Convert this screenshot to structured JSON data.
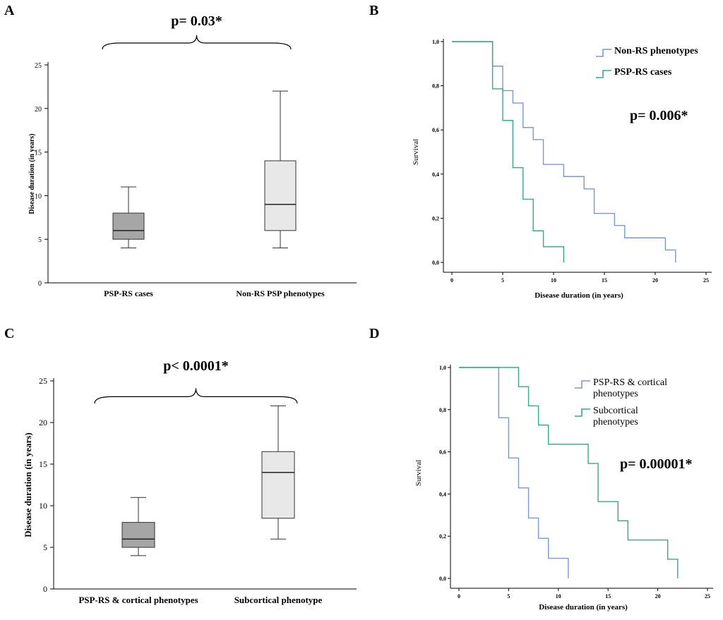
{
  "panels": {
    "A": {
      "letter": "A",
      "pvalue": "p= 0.03*"
    },
    "B": {
      "letter": "B",
      "pvalue": "p= 0.006*"
    },
    "C": {
      "letter": "C",
      "pvalue": "p< 0.0001*"
    },
    "D": {
      "letter": "D",
      "pvalue": "p= 0.00001*"
    }
  },
  "colors": {
    "blue": "#7d96d6",
    "green": "#2fae86",
    "box_dark": "#a6a6a6",
    "box_light": "#e8e8e8"
  },
  "chart_data": [
    {
      "id": "A",
      "type": "box",
      "ylabel": "Disease duration (in years)",
      "categories": [
        "PSP-RS cases",
        "Non-RS PSP phenotypes"
      ],
      "yticks": [
        "0",
        "5",
        "10",
        "15",
        "20",
        "25"
      ],
      "ylim": [
        0,
        25
      ],
      "boxes": [
        {
          "min": 4,
          "q1": 5,
          "median": 6,
          "q3": 8,
          "max": 11,
          "fill": "#a6a6a6"
        },
        {
          "min": 4,
          "q1": 6,
          "median": 9,
          "q3": 14,
          "max": 22,
          "fill": "#e8e8e8"
        }
      ],
      "annotation": "p= 0.03*"
    },
    {
      "id": "B",
      "type": "line",
      "subtype": "kaplan-meier",
      "xlabel": "Disease duration (in years)",
      "ylabel": "Survival",
      "xticks": [
        "0",
        "5",
        "10",
        "15",
        "20",
        "25"
      ],
      "yticks": [
        "0,0",
        "0,2",
        "0,4",
        "0,6",
        "0,8",
        "1,0"
      ],
      "xlim": [
        0,
        25
      ],
      "ylim": [
        0,
        1
      ],
      "legend_position": "top-right",
      "series": [
        {
          "name": "Non-RS phenotypes",
          "color": "#7d96d6",
          "steps": [
            [
              0,
              1.0
            ],
            [
              4,
              0.889
            ],
            [
              5,
              0.778
            ],
            [
              6,
              0.722
            ],
            [
              7,
              0.611
            ],
            [
              8,
              0.556
            ],
            [
              9,
              0.444
            ],
            [
              11,
              0.389
            ],
            [
              13,
              0.333
            ],
            [
              14,
              0.222
            ],
            [
              16,
              0.167
            ],
            [
              17,
              0.111
            ],
            [
              21,
              0.056
            ],
            [
              22,
              0.0
            ]
          ]
        },
        {
          "name": "PSP-RS cases",
          "color": "#2fae86",
          "steps": [
            [
              0,
              1.0
            ],
            [
              4,
              0.786
            ],
            [
              5,
              0.643
            ],
            [
              6,
              0.429
            ],
            [
              7,
              0.286
            ],
            [
              8,
              0.143
            ],
            [
              9,
              0.071
            ],
            [
              11,
              0.0
            ]
          ]
        }
      ],
      "annotation": "p= 0.006*"
    },
    {
      "id": "C",
      "type": "box",
      "ylabel": "Disease duration (in years)",
      "categories": [
        "PSP-RS & cortical phenotypes",
        "Subcortical phenotype"
      ],
      "yticks": [
        "0",
        "5",
        "10",
        "15",
        "20",
        "25"
      ],
      "ylim": [
        0,
        25
      ],
      "boxes": [
        {
          "min": 4,
          "q1": 5,
          "median": 6,
          "q3": 8,
          "max": 11,
          "fill": "#a6a6a6"
        },
        {
          "min": 6,
          "q1": 8.5,
          "median": 14,
          "q3": 16.5,
          "max": 22,
          "fill": "#e8e8e8"
        }
      ],
      "annotation": "p< 0.0001*"
    },
    {
      "id": "D",
      "type": "line",
      "subtype": "kaplan-meier",
      "xlabel": "Disease duration (in years)",
      "ylabel": "Survival",
      "xticks": [
        "0",
        "5",
        "10",
        "15",
        "20",
        "25"
      ],
      "yticks": [
        "0,0",
        "0,2",
        "0,4",
        "0,6",
        "0,8",
        "1,0"
      ],
      "xlim": [
        0,
        25
      ],
      "ylim": [
        0,
        1
      ],
      "legend_position": "top-right",
      "series": [
        {
          "name": "PSP-RS & cortical phenotypes",
          "color": "#7d96d6",
          "steps": [
            [
              0,
              1.0
            ],
            [
              4,
              0.762
            ],
            [
              5,
              0.571
            ],
            [
              6,
              0.429
            ],
            [
              7,
              0.286
            ],
            [
              8,
              0.19
            ],
            [
              9,
              0.095
            ],
            [
              11,
              0.0
            ]
          ]
        },
        {
          "name": "Subcortical phenotypes",
          "color": "#2fae86",
          "steps": [
            [
              0,
              1.0
            ],
            [
              6,
              0.909
            ],
            [
              7,
              0.818
            ],
            [
              8,
              0.727
            ],
            [
              9,
              0.636
            ],
            [
              13,
              0.545
            ],
            [
              14,
              0.364
            ],
            [
              16,
              0.273
            ],
            [
              17,
              0.182
            ],
            [
              21,
              0.091
            ],
            [
              22,
              0.0
            ]
          ]
        }
      ],
      "annotation": "p= 0.00001*"
    }
  ]
}
